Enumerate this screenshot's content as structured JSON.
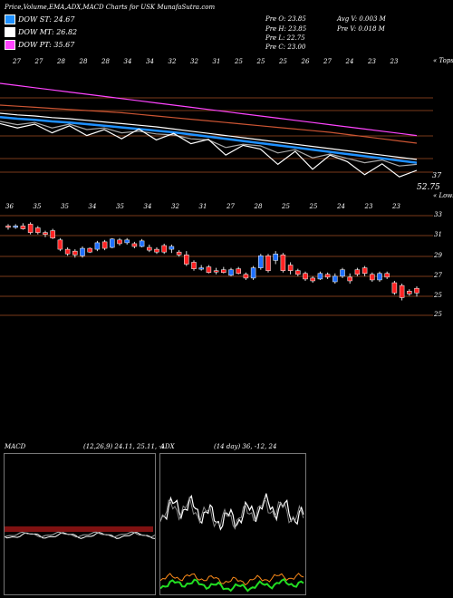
{
  "header": {
    "title": "Price,Volume,EMA,ADX,MACD Charts for USK MunafaSutra.com",
    "legend": [
      {
        "label": "DOW ST: 24.67",
        "color": "#1e90ff"
      },
      {
        "label": "DOW MT: 26.82",
        "color": "#ffffff"
      },
      {
        "label": "DOW PT: 35.67",
        "color": "#ff44ff"
      }
    ],
    "quote": {
      "open": "Pre  O: 23.85",
      "high": "Pre  H: 23.85",
      "low": "Pre  L: 22.75",
      "close": "Pre  C: 23.00",
      "avg_vol": "Avg V: 0.003 M",
      "pre_vol": "Pre  V: 0.018  M"
    }
  },
  "chart_data": [
    {
      "type": "line",
      "panel": "ema",
      "top_dates": [
        "27",
        "27",
        "28",
        "28",
        "28",
        "34",
        "34",
        "32",
        "32",
        "31",
        "25",
        "25",
        "25",
        "26",
        "27",
        "24",
        "23",
        "23"
      ],
      "right_label_top": "« Tops",
      "right_value": "37",
      "last_price": "52.75",
      "series": [
        {
          "color": "#ff44ff",
          "values": [
            60,
            59.6,
            59.2,
            58.8,
            58.4,
            58,
            57.6,
            57.2,
            56.8,
            56.4,
            56,
            55.6,
            55.2,
            54.8,
            54.4,
            54,
            53.6,
            53.2,
            52.8,
            52.4,
            52,
            51.6,
            51.2,
            50.8,
            50.4
          ]
        },
        {
          "color": "#cc5533",
          "values": [
            56,
            55.8,
            55.6,
            55.4,
            55.2,
            55,
            54.8,
            54.6,
            54.3,
            54,
            53.7,
            53.4,
            53.1,
            52.8,
            52.5,
            52.2,
            51.9,
            51.6,
            51.3,
            51,
            50.6,
            50.2,
            49.8,
            49.4,
            49
          ]
        },
        {
          "color": "#ffffff",
          "values": [
            54.5,
            54.2,
            54,
            53.7,
            53.5,
            53.2,
            52.9,
            52.6,
            52.3,
            52,
            51.6,
            51.2,
            50.8,
            50.4,
            50,
            49.6,
            49.2,
            48.8,
            48.4,
            48,
            47.6,
            47.2,
            46.8,
            46.4,
            46
          ]
        },
        {
          "color": "#1e90ff",
          "values": [
            53.8,
            53.5,
            53.3,
            53,
            52.8,
            52.5,
            52.2,
            51.9,
            51.6,
            51.3,
            51,
            50.6,
            50.2,
            49.8,
            49.4,
            49,
            48.6,
            48.2,
            47.8,
            47.4,
            47,
            46.6,
            46.2,
            45.8,
            45.4
          ]
        },
        {
          "color": "#aaaaaa",
          "values": [
            53,
            52.4,
            52.8,
            51.8,
            52.5,
            51.5,
            51.8,
            50.9,
            51.2,
            50.7,
            50.5,
            49.8,
            49.6,
            48.2,
            48.8,
            48.5,
            47.2,
            47.8,
            46.3,
            47,
            46.2,
            45.4,
            45.9,
            44.8,
            45.1
          ]
        },
        {
          "color": "#ffffff",
          "values": [
            52.6,
            51.8,
            52.5,
            50.9,
            52.2,
            50.4,
            51.5,
            49.8,
            51.6,
            49.6,
            50.8,
            48.9,
            49.7,
            46.8,
            48.6,
            47.9,
            45.1,
            47.5,
            44.2,
            46.8,
            45.6,
            43.2,
            45.2,
            42.8,
            44
          ]
        }
      ]
    },
    {
      "type": "candlestick",
      "panel": "price",
      "top_dates": [
        "36",
        "35",
        "35",
        "34",
        "35",
        "34",
        "32",
        "31",
        "27",
        "28",
        "25",
        "25",
        "24",
        "23",
        "23"
      ],
      "right_label_top": "« Lows",
      "y_ticks": [
        "33",
        "31",
        "29",
        "27",
        "25",
        "25"
      ],
      "ylim": [
        22.5,
        34
      ],
      "candles": [
        {
          "o": 32.3,
          "h": 32.5,
          "l": 31.9,
          "c": 32.2
        },
        {
          "o": 32.2,
          "h": 32.5,
          "l": 32.0,
          "c": 32.3
        },
        {
          "o": 32.3,
          "h": 32.6,
          "l": 31.9,
          "c": 32.0
        },
        {
          "o": 32.5,
          "h": 32.7,
          "l": 31.4,
          "c": 31.6
        },
        {
          "o": 32.1,
          "h": 32.3,
          "l": 31.4,
          "c": 31.6
        },
        {
          "o": 31.6,
          "h": 31.8,
          "l": 31.1,
          "c": 31.4
        },
        {
          "o": 31.8,
          "h": 32.0,
          "l": 30.9,
          "c": 31.0
        },
        {
          "o": 30.8,
          "h": 31.0,
          "l": 29.6,
          "c": 29.8
        },
        {
          "o": 29.8,
          "h": 30.0,
          "l": 29.1,
          "c": 29.3
        },
        {
          "o": 29.6,
          "h": 29.8,
          "l": 28.9,
          "c": 29.2
        },
        {
          "o": 29.1,
          "h": 30.1,
          "l": 28.9,
          "c": 29.9
        },
        {
          "o": 29.9,
          "h": 30.0,
          "l": 29.4,
          "c": 29.5
        },
        {
          "o": 29.8,
          "h": 30.7,
          "l": 29.6,
          "c": 30.5
        },
        {
          "o": 30.6,
          "h": 30.8,
          "l": 29.7,
          "c": 29.9
        },
        {
          "o": 30.0,
          "h": 31.0,
          "l": 29.9,
          "c": 30.9
        },
        {
          "o": 30.8,
          "h": 31.0,
          "l": 30.2,
          "c": 30.4
        },
        {
          "o": 30.5,
          "h": 31.0,
          "l": 30.3,
          "c": 30.8
        },
        {
          "o": 30.4,
          "h": 30.6,
          "l": 29.9,
          "c": 30.1
        },
        {
          "o": 30.1,
          "h": 30.9,
          "l": 30.0,
          "c": 30.7
        },
        {
          "o": 30.0,
          "h": 30.3,
          "l": 29.5,
          "c": 29.7
        },
        {
          "o": 29.8,
          "h": 30.0,
          "l": 29.3,
          "c": 29.5
        },
        {
          "o": 30.2,
          "h": 30.4,
          "l": 29.3,
          "c": 29.5
        },
        {
          "o": 29.8,
          "h": 30.3,
          "l": 29.4,
          "c": 30.1
        },
        {
          "o": 29.5,
          "h": 29.7,
          "l": 29.0,
          "c": 29.2
        },
        {
          "o": 29.2,
          "h": 29.6,
          "l": 28.0,
          "c": 28.2
        },
        {
          "o": 28.4,
          "h": 28.6,
          "l": 27.5,
          "c": 27.7
        },
        {
          "o": 27.8,
          "h": 28.1,
          "l": 27.5,
          "c": 27.8
        },
        {
          "o": 27.9,
          "h": 28.1,
          "l": 27.2,
          "c": 27.3
        },
        {
          "o": 27.5,
          "h": 27.8,
          "l": 27.1,
          "c": 27.4
        },
        {
          "o": 27.6,
          "h": 27.9,
          "l": 27.2,
          "c": 27.3
        },
        {
          "o": 27.0,
          "h": 27.8,
          "l": 26.9,
          "c": 27.6
        },
        {
          "o": 27.7,
          "h": 27.9,
          "l": 27.1,
          "c": 27.2
        },
        {
          "o": 27.1,
          "h": 27.3,
          "l": 26.5,
          "c": 26.7
        },
        {
          "o": 26.7,
          "h": 28.0,
          "l": 26.5,
          "c": 27.8
        },
        {
          "o": 27.8,
          "h": 29.3,
          "l": 27.6,
          "c": 29.1
        },
        {
          "o": 29.1,
          "h": 29.3,
          "l": 27.3,
          "c": 27.5
        },
        {
          "o": 28.6,
          "h": 29.6,
          "l": 28.2,
          "c": 29.3
        },
        {
          "o": 29.2,
          "h": 29.4,
          "l": 27.3,
          "c": 27.5
        },
        {
          "o": 28.1,
          "h": 28.4,
          "l": 27.1,
          "c": 27.5
        },
        {
          "o": 27.5,
          "h": 27.7,
          "l": 26.9,
          "c": 27.1
        },
        {
          "o": 27.2,
          "h": 27.4,
          "l": 26.4,
          "c": 26.6
        },
        {
          "o": 26.7,
          "h": 26.9,
          "l": 26.2,
          "c": 26.4
        },
        {
          "o": 26.6,
          "h": 27.4,
          "l": 26.5,
          "c": 27.2
        },
        {
          "o": 27.1,
          "h": 27.3,
          "l": 26.6,
          "c": 26.8
        },
        {
          "o": 26.3,
          "h": 27.2,
          "l": 26.1,
          "c": 26.9
        },
        {
          "o": 26.9,
          "h": 27.8,
          "l": 26.7,
          "c": 27.6
        },
        {
          "o": 26.8,
          "h": 27.2,
          "l": 26.1,
          "c": 26.4
        },
        {
          "o": 27.6,
          "h": 27.8,
          "l": 26.9,
          "c": 27.1
        },
        {
          "o": 27.8,
          "h": 28.0,
          "l": 26.9,
          "c": 27.2
        },
        {
          "o": 27.1,
          "h": 27.3,
          "l": 26.3,
          "c": 26.5
        },
        {
          "o": 26.5,
          "h": 27.4,
          "l": 26.3,
          "c": 27.2
        },
        {
          "o": 27.2,
          "h": 27.4,
          "l": 26.6,
          "c": 26.8
        },
        {
          "o": 26.2,
          "h": 26.4,
          "l": 24.9,
          "c": 25.1
        },
        {
          "o": 25.9,
          "h": 26.1,
          "l": 24.3,
          "c": 24.6
        },
        {
          "o": 25.3,
          "h": 25.5,
          "l": 24.8,
          "c": 25.0
        },
        {
          "o": 25.6,
          "h": 25.8,
          "l": 24.7,
          "c": 25.1
        }
      ]
    },
    {
      "type": "bar",
      "panel": "macd",
      "title": "MACD",
      "params": "(12,26,9) 24.11, 25.11, -1"
    },
    {
      "type": "line",
      "panel": "adx",
      "title": "ADX",
      "params": "(14 day) 36, -12, 24"
    }
  ]
}
